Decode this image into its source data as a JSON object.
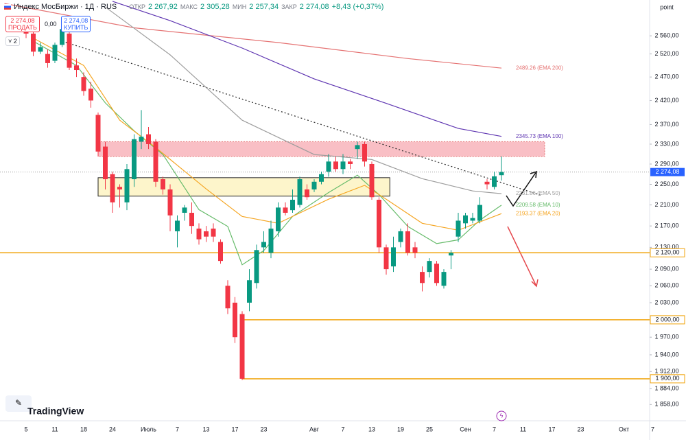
{
  "chart_data": {
    "type": "candlestick",
    "log_scale": true,
    "title": "Индекс МосБиржи · 1Д · RUS",
    "header": {
      "open_label": "ОТКР",
      "open": "2 267,92",
      "high_label": "МАКС",
      "high": "2 305,28",
      "low_label": "МИН",
      "low": "2 257,34",
      "close_label": "ЗАКР",
      "close": "2 274,08",
      "change": "+8,43 (+0,37%)"
    },
    "sell": {
      "price": "2 274,08",
      "label": "ПРОДАТЬ"
    },
    "spread": "0,00",
    "buy": {
      "price": "2 274,08",
      "label": "КУПИТЬ"
    },
    "indicator_count": "2",
    "axis_unit": "point",
    "brand": "TradingView",
    "up_color": "#089981",
    "down_color": "#f23645",
    "categories": [
      "5",
      null,
      null,
      null,
      "11",
      null,
      null,
      null,
      "18",
      null,
      null,
      null,
      "24",
      null,
      null,
      null,
      null,
      "Июль",
      null,
      null,
      null,
      "7",
      null,
      null,
      null,
      "13",
      null,
      null,
      null,
      "17",
      null,
      null,
      null,
      "23",
      null,
      null,
      null,
      null,
      null,
      null,
      "Авг",
      null,
      null,
      null,
      "7",
      null,
      null,
      null,
      "13",
      null,
      null,
      null,
      "19",
      null,
      null,
      null,
      "25",
      null,
      null,
      null,
      null,
      "Сен",
      null,
      null,
      null,
      "7",
      null,
      null,
      null,
      "11",
      null,
      null,
      null,
      "17",
      null,
      null,
      null,
      "23",
      null,
      null,
      null,
      null,
      null,
      "Окт",
      null,
      null,
      null,
      "7"
    ],
    "open": [
      2585,
      2565,
      2525,
      2520,
      2505,
      2540,
      2565,
      2495,
      2470,
      2445,
      2390,
      2325,
      2270,
      2245,
      2215,
      2260,
      2335,
      2350,
      2335,
      2260,
      2240,
      2160,
      2195,
      2195,
      2165,
      2160,
      2165,
      2140,
      2060,
      2030,
      2010,
      2030,
      2065,
      2130,
      2120,
      2160,
      2205,
      2200,
      2210,
      2240,
      2240,
      2255,
      2275,
      2295,
      2280,
      2295,
      2320,
      2330,
      2290,
      2220,
      2130,
      2095,
      2140,
      2160,
      2130,
      2085,
      2085,
      2100,
      2060,
      2115,
      2150,
      2175,
      2180,
      2180,
      2255,
      2245,
      2267.92,
      null,
      null,
      null,
      null,
      null,
      null,
      null,
      null,
      null,
      null,
      null,
      null,
      null,
      null,
      null,
      null,
      null,
      null,
      null,
      null,
      null
    ],
    "high": [
      2600,
      2575,
      2545,
      2530,
      2545,
      2585,
      2570,
      2510,
      2480,
      2460,
      2395,
      2335,
      2275,
      2250,
      2290,
      2350,
      2400,
      2365,
      2340,
      2265,
      2250,
      2190,
      2210,
      2215,
      2175,
      2170,
      2175,
      2145,
      2070,
      2040,
      2015,
      2090,
      2135,
      2160,
      2180,
      2215,
      2215,
      2240,
      2265,
      2250,
      2260,
      2275,
      2310,
      2305,
      2310,
      2300,
      2335,
      2335,
      2295,
      2225,
      2135,
      2150,
      2165,
      2175,
      2140,
      2095,
      2110,
      2105,
      2090,
      2125,
      2195,
      2195,
      2195,
      2225,
      2260,
      2275,
      2305.28,
      null,
      null,
      null,
      null,
      null,
      null,
      null,
      null,
      null,
      null,
      null,
      null,
      null,
      null,
      null,
      null,
      null,
      null,
      null,
      null,
      null
    ],
    "low": [
      2555,
      2515,
      2520,
      2490,
      2500,
      2535,
      2485,
      2470,
      2430,
      2405,
      2305,
      2240,
      2195,
      2205,
      2200,
      2245,
      2320,
      2320,
      2245,
      2230,
      2160,
      2130,
      2180,
      2155,
      2135,
      2140,
      2140,
      2100,
      2010,
      1960,
      1898,
      2015,
      2055,
      2120,
      2110,
      2150,
      2190,
      2195,
      2205,
      2220,
      2235,
      2250,
      2265,
      2275,
      2270,
      2280,
      2300,
      2285,
      2220,
      2120,
      2080,
      2085,
      2130,
      2115,
      2110,
      2050,
      2075,
      2060,
      2055,
      2090,
      2140,
      2165,
      2175,
      2175,
      2240,
      2240,
      2257.34,
      null,
      null,
      null,
      null,
      null,
      null,
      null,
      null,
      null,
      null,
      null,
      null,
      null,
      null,
      null,
      null,
      null,
      null,
      null,
      null,
      null
    ],
    "close": [
      2565,
      2525,
      2535,
      2500,
      2540,
      2575,
      2490,
      2485,
      2440,
      2420,
      2315,
      2260,
      2215,
      2240,
      2280,
      2340,
      2345,
      2330,
      2255,
      2240,
      2190,
      2180,
      2205,
      2170,
      2145,
      2150,
      2150,
      2105,
      2020,
      1970,
      1900,
      2070,
      2125,
      2140,
      2165,
      2205,
      2195,
      2220,
      2260,
      2225,
      2255,
      2270,
      2295,
      2280,
      2295,
      2290,
      2328,
      2295,
      2225,
      2130,
      2090,
      2130,
      2160,
      2120,
      2120,
      2065,
      2105,
      2065,
      2085,
      2120,
      2180,
      2190,
      2185,
      2210,
      2250,
      2265.65,
      2274.08,
      null,
      null,
      null,
      null,
      null,
      null,
      null,
      null,
      null,
      null,
      null,
      null,
      null,
      null,
      null,
      null,
      null,
      null,
      null,
      null,
      null
    ],
    "series": [
      {
        "label": "2489.26 (EMA 200)",
        "color": "#e57373",
        "x": [
          -3,
          15,
          35,
          53,
          66
        ],
        "values": [
          2633,
          2578,
          2545,
          2510,
          2489.26
        ]
      },
      {
        "label": "2345.73 (EMA 100)",
        "color": "#5e35b1",
        "x": [
          12,
          20,
          30,
          40,
          50,
          60,
          66
        ],
        "values": [
          2638,
          2594,
          2533,
          2466,
          2414,
          2362,
          2345.73
        ]
      },
      {
        "label": "2231.86 (EMA 50)",
        "color": "#9e9e9e",
        "x": [
          11,
          20,
          30,
          40,
          48,
          55,
          62,
          66
        ],
        "values": [
          2625,
          2518,
          2379,
          2309,
          2299,
          2261,
          2237,
          2231.86
        ]
      },
      {
        "label": "2209.58 (EMA 10)",
        "color": "#66bb6a",
        "x": [
          1,
          7,
          11,
          15,
          19,
          24,
          28,
          30,
          33,
          37,
          42,
          46,
          49,
          53,
          57,
          60,
          63,
          66
        ],
        "values": [
          2548,
          2495,
          2415,
          2357,
          2309,
          2201,
          2169,
          2098,
          2124,
          2188,
          2234,
          2268,
          2230,
          2169,
          2137,
          2144,
          2181,
          2209.58
        ]
      },
      {
        "label": "2193.37 (EMA 20)",
        "color": "#f5a623",
        "x": [
          1,
          8,
          13,
          18,
          25,
          30,
          35,
          42,
          47,
          50,
          55,
          60,
          66
        ],
        "values": [
          2555,
          2495,
          2379,
          2323,
          2241,
          2188,
          2175,
          2221,
          2248,
          2221,
          2175,
          2162,
          2193.37
        ]
      }
    ],
    "zones": [
      {
        "low": 2305,
        "high": 2335,
        "color": "#f8b4bb"
      },
      {
        "low": 2227,
        "high": 2263,
        "color": "#fdf3c2"
      }
    ],
    "price_lines": [
      {
        "value": 2120,
        "label": "2 120,00",
        "color": "#f0a30a"
      },
      {
        "value": 2000,
        "label": "2 000,00",
        "color": "#f0a30a"
      },
      {
        "value": 1900,
        "label": "1 900,00",
        "color": "#f0a30a"
      }
    ],
    "last_price": {
      "value": 2274.08,
      "label": "2 274,08",
      "color": "#2962ff"
    },
    "ylim": [
      1833,
      2641
    ],
    "yticks": [
      {
        "value": 2560,
        "label": "2 560,00"
      },
      {
        "value": 2520,
        "label": "2 520,00"
      },
      {
        "value": 2470,
        "label": "2 470,00"
      },
      {
        "value": 2420,
        "label": "2 420,00"
      },
      {
        "value": 2370,
        "label": "2 370,00"
      },
      {
        "value": 2330,
        "label": "2 330,00"
      },
      {
        "value": 2290,
        "label": "2 290,00"
      },
      {
        "value": 2250,
        "label": "2 250,00"
      },
      {
        "value": 2210,
        "label": "2 210,00"
      },
      {
        "value": 2170,
        "label": "2 170,00"
      },
      {
        "value": 2130,
        "label": "2 130,00"
      },
      {
        "value": 2090,
        "label": "2 090,00"
      },
      {
        "value": 2060,
        "label": "2 060,00"
      },
      {
        "value": 2030,
        "label": "2 030,00"
      },
      {
        "value": 1970,
        "label": "1 970,00"
      },
      {
        "value": 1940,
        "label": "1 940,00"
      },
      {
        "value": 1912,
        "label": "1 912,00"
      },
      {
        "value": 1884,
        "label": "1 884,00"
      },
      {
        "value": 1858,
        "label": "1 858,00"
      }
    ]
  }
}
